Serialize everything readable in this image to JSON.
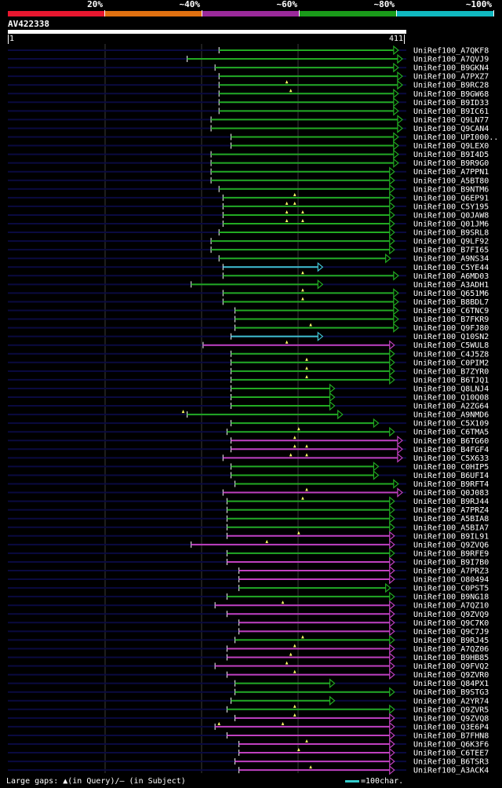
{
  "scale": {
    "labels": [
      "20%",
      "~40%",
      "~60%",
      "~80%",
      "~100%"
    ],
    "colors": [
      "#e8172f",
      "#e07010",
      "#9a2a9a",
      "#1a9a1a",
      "#10b8c0"
    ]
  },
  "query": {
    "name": "AV422338",
    "start": "1",
    "end": "411"
  },
  "colors": {
    "green": "#22aa22",
    "magenta": "#c040c0",
    "cyan": "#40c0d0",
    "dark": "#0a0a40",
    "grid": "#3a3a3a"
  },
  "hits": [
    {
      "id": "UniRef100_A7QKF8",
      "c": "green",
      "s": 53,
      "e": 98
    },
    {
      "id": "UniRef100_A7QVJ9",
      "c": "green",
      "s": 45,
      "e": 99
    },
    {
      "id": "UniRef100_B9GKN4",
      "c": "green",
      "s": 52,
      "e": 98
    },
    {
      "id": "UniRef100_A7PXZ7",
      "c": "green",
      "s": 53,
      "e": 99
    },
    {
      "id": "UniRef100_B9RC28",
      "c": "green",
      "s": 53,
      "e": 99,
      "g": [
        70
      ]
    },
    {
      "id": "UniRef100_B9GW68",
      "c": "green",
      "s": 53,
      "e": 98,
      "g": [
        71
      ]
    },
    {
      "id": "UniRef100_B9ID33",
      "c": "green",
      "s": 53,
      "e": 98
    },
    {
      "id": "UniRef100_B9IC61",
      "c": "green",
      "s": 53,
      "e": 98
    },
    {
      "id": "UniRef100_Q9LN77",
      "c": "green",
      "s": 51,
      "e": 99
    },
    {
      "id": "UniRef100_Q9CAN4",
      "c": "green",
      "s": 51,
      "e": 99
    },
    {
      "id": "UniRef100_UPI000..",
      "c": "green",
      "s": 56,
      "e": 98
    },
    {
      "id": "UniRef100_Q9LEX0",
      "c": "green",
      "s": 56,
      "e": 98
    },
    {
      "id": "UniRef100_B9I4D5",
      "c": "green",
      "s": 51,
      "e": 98
    },
    {
      "id": "UniRef100_B9R9G0",
      "c": "green",
      "s": 51,
      "e": 98
    },
    {
      "id": "UniRef100_A7PPN1",
      "c": "green",
      "s": 51,
      "e": 97
    },
    {
      "id": "UniRef100_A5BT80",
      "c": "green",
      "s": 51,
      "e": 97
    },
    {
      "id": "UniRef100_B9NTM6",
      "c": "green",
      "s": 53,
      "e": 97
    },
    {
      "id": "UniRef100_Q6EP91",
      "c": "green",
      "s": 54,
      "e": 97,
      "g": [
        72
      ]
    },
    {
      "id": "UniRef100_C5Y195",
      "c": "green",
      "s": 54,
      "e": 97,
      "g": [
        70,
        72
      ]
    },
    {
      "id": "UniRef100_Q0JAW8",
      "c": "green",
      "s": 54,
      "e": 97,
      "g": [
        70,
        74
      ]
    },
    {
      "id": "UniRef100_Q01JM6",
      "c": "green",
      "s": 54,
      "e": 97,
      "g": [
        70,
        74
      ]
    },
    {
      "id": "UniRef100_B9SRL8",
      "c": "green",
      "s": 53,
      "e": 97
    },
    {
      "id": "UniRef100_Q9LF92",
      "c": "green",
      "s": 51,
      "e": 97
    },
    {
      "id": "UniRef100_B7FI65",
      "c": "green",
      "s": 51,
      "e": 97
    },
    {
      "id": "UniRef100_A9NS34",
      "c": "green",
      "s": 53,
      "e": 96
    },
    {
      "id": "UniRef100_C5YE44",
      "c": "cyan",
      "s": 54,
      "e": 79
    },
    {
      "id": "UniRef100_A6MD03",
      "c": "green",
      "s": 54,
      "e": 98,
      "g": [
        74
      ]
    },
    {
      "id": "UniRef100_A3ADH1",
      "c": "green",
      "s": 46,
      "e": 79
    },
    {
      "id": "UniRef100_Q651M6",
      "c": "green",
      "s": 54,
      "e": 98,
      "g": [
        74
      ]
    },
    {
      "id": "UniRef100_B8BDL7",
      "c": "green",
      "s": 54,
      "e": 98,
      "g": [
        74
      ]
    },
    {
      "id": "UniRef100_C6TNC9",
      "c": "green",
      "s": 57,
      "e": 98
    },
    {
      "id": "UniRef100_B7FKR9",
      "c": "green",
      "s": 57,
      "e": 98
    },
    {
      "id": "UniRef100_Q9FJ80",
      "c": "green",
      "s": 57,
      "e": 98,
      "g": [
        76
      ]
    },
    {
      "id": "UniRef100_Q10SN2",
      "c": "cyan",
      "s": 56,
      "e": 79
    },
    {
      "id": "UniRef100_C5WUL8",
      "c": "magenta",
      "s": 49,
      "e": 97,
      "g": [
        70
      ]
    },
    {
      "id": "UniRef100_C4J5Z8",
      "c": "green",
      "s": 56,
      "e": 97
    },
    {
      "id": "UniRef100_C0PIM2",
      "c": "green",
      "s": 56,
      "e": 97,
      "g": [
        75
      ]
    },
    {
      "id": "UniRef100_B7ZYR0",
      "c": "green",
      "s": 56,
      "e": 97,
      "g": [
        75
      ]
    },
    {
      "id": "UniRef100_B6TJQ1",
      "c": "green",
      "s": 56,
      "e": 97,
      "g": [
        75
      ]
    },
    {
      "id": "UniRef100_Q8LNJ4",
      "c": "green",
      "s": 56,
      "e": 82
    },
    {
      "id": "UniRef100_Q10Q08",
      "c": "green",
      "s": 56,
      "e": 82
    },
    {
      "id": "UniRef100_A2ZG64",
      "c": "green",
      "s": 56,
      "e": 82
    },
    {
      "id": "UniRef100_A9NMD6",
      "c": "green",
      "s": 45,
      "e": 84,
      "g": [
        44
      ]
    },
    {
      "id": "UniRef100_C5X109",
      "c": "green",
      "s": 56,
      "e": 93
    },
    {
      "id": "UniRef100_C6TMA5",
      "c": "green",
      "s": 55,
      "e": 97,
      "g": [
        73
      ]
    },
    {
      "id": "UniRef100_B6TG60",
      "c": "magenta",
      "s": 56,
      "e": 99,
      "g": [
        72
      ]
    },
    {
      "id": "UniRef100_B4FGF4",
      "c": "magenta",
      "s": 56,
      "e": 99,
      "g": [
        72,
        75
      ]
    },
    {
      "id": "UniRef100_C5X633",
      "c": "magenta",
      "s": 54,
      "e": 99,
      "g": [
        71,
        75
      ]
    },
    {
      "id": "UniRef100_C0HIP5",
      "c": "green",
      "s": 56,
      "e": 93
    },
    {
      "id": "UniRef100_B6UFI4",
      "c": "green",
      "s": 56,
      "e": 93
    },
    {
      "id": "UniRef100_B9RFT4",
      "c": "green",
      "s": 57,
      "e": 98
    },
    {
      "id": "UniRef100_Q0J083",
      "c": "magenta",
      "s": 54,
      "e": 99,
      "g": [
        75
      ]
    },
    {
      "id": "UniRef100_B9RJ44",
      "c": "green",
      "s": 55,
      "e": 97,
      "g": [
        74
      ]
    },
    {
      "id": "UniRef100_A7PRZ4",
      "c": "green",
      "s": 55,
      "e": 97
    },
    {
      "id": "UniRef100_A5BIA8",
      "c": "green",
      "s": 55,
      "e": 97
    },
    {
      "id": "UniRef100_A5BIA7",
      "c": "green",
      "s": 55,
      "e": 97
    },
    {
      "id": "UniRef100_B9IL91",
      "c": "magenta",
      "s": 55,
      "e": 97,
      "g": [
        73
      ]
    },
    {
      "id": "UniRef100_Q9ZVQ6",
      "c": "magenta",
      "s": 46,
      "e": 97,
      "g": [
        65
      ]
    },
    {
      "id": "UniRef100_B9RFE9",
      "c": "green",
      "s": 55,
      "e": 97
    },
    {
      "id": "UniRef100_B9I7B0",
      "c": "magenta",
      "s": 55,
      "e": 97
    },
    {
      "id": "UniRef100_A7PRZ3",
      "c": "magenta",
      "s": 58,
      "e": 97
    },
    {
      "id": "UniRef100_O80494",
      "c": "magenta",
      "s": 58,
      "e": 97
    },
    {
      "id": "UniRef100_C0PST5",
      "c": "green",
      "s": 58,
      "e": 96
    },
    {
      "id": "UniRef100_B9NG18",
      "c": "green",
      "s": 55,
      "e": 97
    },
    {
      "id": "UniRef100_A7QZ10",
      "c": "magenta",
      "s": 52,
      "e": 97,
      "g": [
        69
      ]
    },
    {
      "id": "UniRef100_Q9ZVQ9",
      "c": "magenta",
      "s": 55,
      "e": 97
    },
    {
      "id": "UniRef100_Q9C7K0",
      "c": "magenta",
      "s": 58,
      "e": 97
    },
    {
      "id": "UniRef100_Q9C7J9",
      "c": "magenta",
      "s": 58,
      "e": 97
    },
    {
      "id": "UniRef100_B9RJ45",
      "c": "green",
      "s": 57,
      "e": 97,
      "g": [
        74
      ]
    },
    {
      "id": "UniRef100_A7QZ06",
      "c": "magenta",
      "s": 55,
      "e": 97,
      "g": [
        72
      ]
    },
    {
      "id": "UniRef100_B9HB85",
      "c": "magenta",
      "s": 55,
      "e": 97,
      "g": [
        71
      ]
    },
    {
      "id": "UniRef100_Q9FVQ2",
      "c": "magenta",
      "s": 52,
      "e": 97,
      "g": [
        70
      ]
    },
    {
      "id": "UniRef100_Q9ZVR0",
      "c": "magenta",
      "s": 55,
      "e": 97,
      "g": [
        72
      ]
    },
    {
      "id": "UniRef100_Q84PX1",
      "c": "green",
      "s": 57,
      "e": 82
    },
    {
      "id": "UniRef100_B9STG3",
      "c": "green",
      "s": 57,
      "e": 97
    },
    {
      "id": "UniRef100_A2YR74",
      "c": "green",
      "s": 56,
      "e": 82
    },
    {
      "id": "UniRef100_Q9ZVR5",
      "c": "green",
      "s": 55,
      "e": 97,
      "g": [
        72
      ]
    },
    {
      "id": "UniRef100_Q9ZVQ8",
      "c": "magenta",
      "s": 57,
      "e": 97,
      "g": [
        72
      ]
    },
    {
      "id": "UniRef100_Q3E6P4",
      "c": "magenta",
      "s": 52,
      "e": 97,
      "g": [
        53,
        69
      ]
    },
    {
      "id": "UniRef100_B7FHN8",
      "c": "magenta",
      "s": 55,
      "e": 97
    },
    {
      "id": "UniRef100_Q6K3F6",
      "c": "magenta",
      "s": 58,
      "e": 97,
      "g": [
        75
      ]
    },
    {
      "id": "UniRef100_C6TEE7",
      "c": "magenta",
      "s": 58,
      "e": 97,
      "g": [
        73
      ]
    },
    {
      "id": "UniRef100_B6TSR3",
      "c": "magenta",
      "s": 57,
      "e": 97
    },
    {
      "id": "UniRef100_A3ACK4",
      "c": "magenta",
      "s": 58,
      "e": 97,
      "g": [
        76
      ]
    }
  ],
  "legend": {
    "gaps_text": "Large gaps: ▲(in Query)/— (in Subject)",
    "scale_text": "=100char."
  }
}
